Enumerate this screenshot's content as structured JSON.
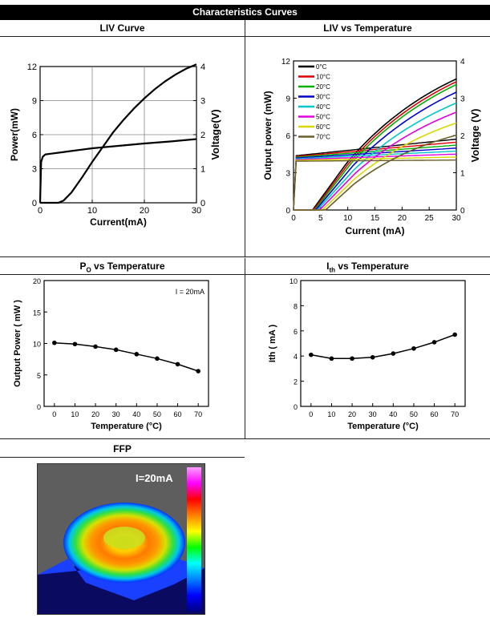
{
  "page": {
    "title": "Characteristics Curves",
    "sections": {
      "liv": "LIV Curve",
      "liv_temp": "LIV vs Temperature",
      "po_temp_main": "P",
      "po_temp_sub": "O",
      "po_temp_rest": " vs Temperature",
      "ith_temp_main": "I",
      "ith_temp_sub": "th",
      "ith_temp_rest": " vs Temperature",
      "ffp": "FFP"
    }
  },
  "ffp": {
    "label": "I=20mA",
    "colorbar": [
      "#ff9cff",
      "#ff00ff",
      "#ff0000",
      "#ff8000",
      "#ffff00",
      "#00ff00",
      "#00ffff",
      "#0080ff",
      "#0000ff",
      "#000080"
    ]
  },
  "chart_data": [
    {
      "type": "line",
      "xlabel": "Current(mA)",
      "ylabel": "Power(mW)",
      "y2label": "Voltage(V)",
      "xticks": [
        "0",
        "10",
        "20",
        "30"
      ],
      "yticks": [
        "0",
        "3",
        "6",
        "9",
        "12"
      ],
      "y2ticks": [
        "0",
        "1",
        "2",
        "3",
        "4"
      ],
      "xlim": [
        0,
        30
      ],
      "ylim": [
        0,
        12
      ],
      "y2lim": [
        0,
        4
      ],
      "grid": true,
      "series": [
        {
          "axis": "left",
          "x": [
            0,
            3.5,
            4.5,
            6,
            8,
            10,
            12,
            14,
            16,
            18,
            20,
            22,
            24,
            26,
            28,
            30
          ],
          "y": [
            0,
            0,
            0.2,
            0.9,
            2.2,
            3.6,
            4.9,
            6.2,
            7.3,
            8.3,
            9.2,
            10.0,
            10.7,
            11.3,
            11.8,
            12.2
          ]
        },
        {
          "axis": "right",
          "x": [
            0,
            0.2,
            0.5,
            1,
            2,
            4,
            6,
            8,
            10,
            15,
            20,
            25,
            30
          ],
          "y": [
            0,
            1.2,
            1.35,
            1.42,
            1.44,
            1.48,
            1.52,
            1.56,
            1.6,
            1.67,
            1.74,
            1.8,
            1.87
          ]
        }
      ]
    },
    {
      "type": "line",
      "xlabel": "Current (mA)",
      "ylabel": "Output power (mW)",
      "y2label": "Voltage (V)",
      "xticks": [
        "0",
        "5",
        "10",
        "15",
        "20",
        "25",
        "30"
      ],
      "yticks": [
        "0",
        "3",
        "6",
        "9",
        "12"
      ],
      "y2ticks": [
        "0",
        "1",
        "2",
        "3",
        "4"
      ],
      "xlim": [
        0,
        30
      ],
      "ylim": [
        0,
        12
      ],
      "y2lim": [
        0,
        4
      ],
      "legend_position": "top-left",
      "series": [
        {
          "name": "0°C",
          "color": "#000000",
          "ith": 3.5,
          "slope": 0.6,
          "pmax": 13
        },
        {
          "name": "10°C",
          "color": "#e00000",
          "ith": 3.7,
          "slope": 0.58,
          "pmax": 13
        },
        {
          "name": "20°C",
          "color": "#00b000",
          "ith": 3.9,
          "slope": 0.56,
          "pmax": 13
        },
        {
          "name": "30°C",
          "color": "#0000cc",
          "ith": 4.1,
          "slope": 0.52,
          "pmax": 12.5
        },
        {
          "name": "40°C",
          "color": "#00c8c8",
          "ith": 4.4,
          "slope": 0.48,
          "pmax": 11.3
        },
        {
          "name": "50°C",
          "color": "#e000e0",
          "ith": 4.8,
          "slope": 0.45,
          "pmax": 10.2
        },
        {
          "name": "60°C",
          "color": "#d8d800",
          "ith": 5.3,
          "slope": 0.42,
          "pmax": 8.8
        },
        {
          "name": "70°C",
          "color": "#6b5d2a",
          "ith": 5.9,
          "slope": 0.4,
          "pmax": 7.0
        }
      ]
    },
    {
      "type": "line",
      "xlabel": "Temperature (°C)",
      "ylabel": "Output Power ( mW )",
      "annotation": "I = 20mA",
      "xticks": [
        "0",
        "10",
        "20",
        "30",
        "40",
        "50",
        "60",
        "70"
      ],
      "yticks": [
        "0",
        "5",
        "10",
        "15",
        "20"
      ],
      "xlim": [
        -5,
        75
      ],
      "ylim": [
        0,
        20
      ],
      "x": [
        0,
        10,
        20,
        30,
        40,
        50,
        60,
        70
      ],
      "y": [
        10.1,
        9.9,
        9.5,
        9.0,
        8.3,
        7.6,
        6.7,
        5.6
      ]
    },
    {
      "type": "line",
      "xlabel": "Temperature (°C)",
      "ylabel": "Ith ( mA )",
      "xticks": [
        "0",
        "10",
        "20",
        "30",
        "40",
        "50",
        "60",
        "70"
      ],
      "yticks": [
        "0",
        "2",
        "4",
        "6",
        "8",
        "10"
      ],
      "xlim": [
        -5,
        75
      ],
      "ylim": [
        0,
        10
      ],
      "x": [
        0,
        10,
        20,
        30,
        40,
        50,
        60,
        70
      ],
      "y": [
        4.1,
        3.8,
        3.8,
        3.9,
        4.2,
        4.6,
        5.1,
        5.7
      ]
    }
  ]
}
